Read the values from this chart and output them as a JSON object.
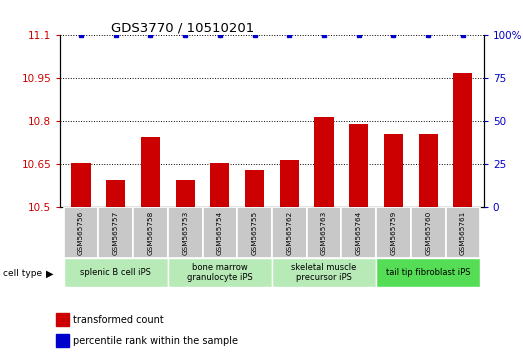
{
  "title": "GDS3770 / 10510201",
  "samples": [
    "GSM565756",
    "GSM565757",
    "GSM565758",
    "GSM565753",
    "GSM565754",
    "GSM565755",
    "GSM565762",
    "GSM565763",
    "GSM565764",
    "GSM565759",
    "GSM565760",
    "GSM565761"
  ],
  "transformed_counts": [
    10.653,
    10.595,
    10.745,
    10.595,
    10.655,
    10.63,
    10.663,
    10.815,
    10.79,
    10.755,
    10.755,
    10.968
  ],
  "percentile_ranks": [
    100,
    100,
    100,
    100,
    100,
    100,
    100,
    100,
    100,
    100,
    100,
    100
  ],
  "groups": [
    {
      "label": "splenic B cell iPS",
      "start": 0,
      "end": 2,
      "color": "#b8eab8"
    },
    {
      "label": "bone marrow\ngranulocyte iPS",
      "start": 3,
      "end": 5,
      "color": "#b8eab8"
    },
    {
      "label": "skeletal muscle\nprecursor iPS",
      "start": 6,
      "end": 8,
      "color": "#b8eab8"
    },
    {
      "label": "tail tip fibroblast iPS",
      "start": 9,
      "end": 11,
      "color": "#55dd55"
    }
  ],
  "ylim_left": [
    10.5,
    11.1
  ],
  "ylim_right": [
    0,
    100
  ],
  "yticks_left": [
    10.5,
    10.65,
    10.8,
    10.95,
    11.1
  ],
  "yticks_right": [
    0,
    25,
    50,
    75,
    100
  ],
  "bar_color": "#cc0000",
  "dot_color": "#0000cc",
  "bar_width": 0.55,
  "left_tick_color": "#cc0000",
  "right_tick_color": "#0000cc",
  "grid_color": "black",
  "sample_box_color": "#c8c8c8",
  "cell_type_label": "cell type"
}
